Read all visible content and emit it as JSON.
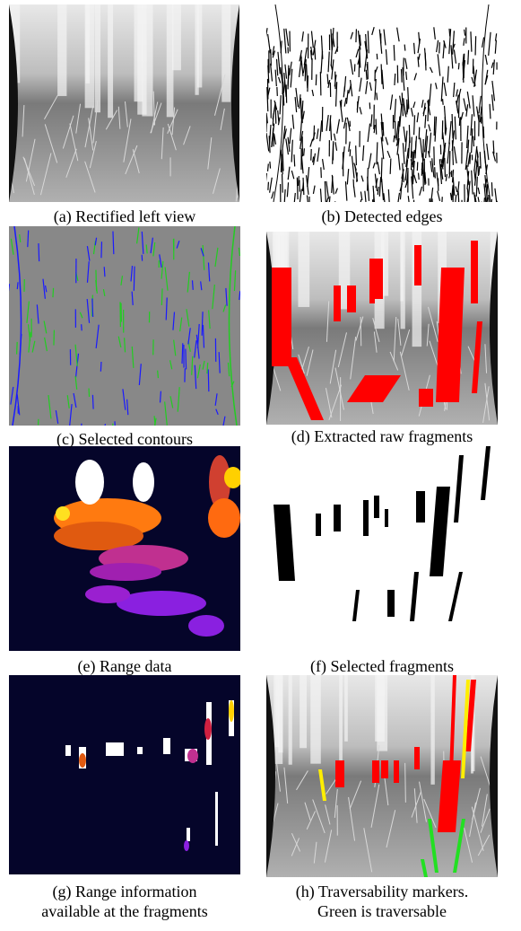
{
  "panels": [
    {
      "caption": "(a) Rectified left view"
    },
    {
      "caption": "(b) Detected edges"
    },
    {
      "caption": "(c) Selected contours"
    },
    {
      "caption": "(d) Extracted raw fragments"
    },
    {
      "caption": "(e) Range data"
    },
    {
      "caption": "(f) Selected fragments"
    },
    {
      "caption_lines": [
        "(g) Range information",
        "available at the fragments"
      ]
    },
    {
      "caption_lines": [
        "(h) Traversability markers.",
        "Green is traversable"
      ]
    }
  ]
}
